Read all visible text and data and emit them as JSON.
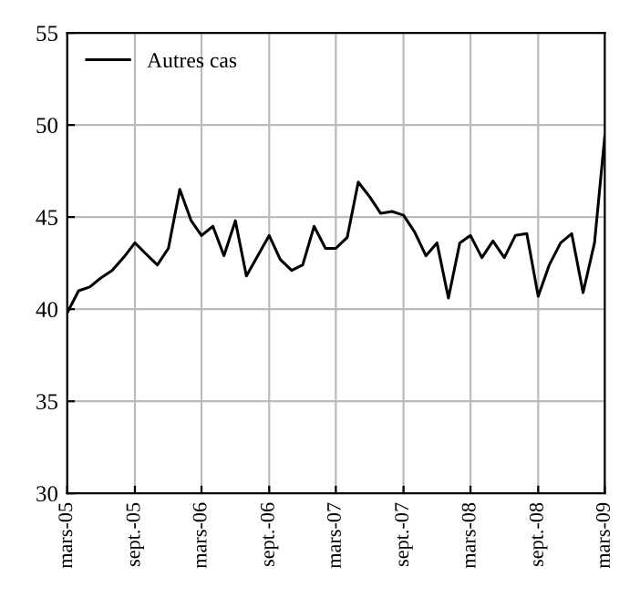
{
  "chart_data": {
    "type": "line",
    "x": [
      "2005-03",
      "2005-04",
      "2005-05",
      "2005-06",
      "2005-07",
      "2005-08",
      "2005-09",
      "2005-10",
      "2005-11",
      "2005-12",
      "2006-01",
      "2006-02",
      "2006-03",
      "2006-04",
      "2006-05",
      "2006-06",
      "2006-07",
      "2006-08",
      "2006-09",
      "2006-10",
      "2006-11",
      "2006-12",
      "2007-01",
      "2007-02",
      "2007-03",
      "2007-04",
      "2007-05",
      "2007-06",
      "2007-07",
      "2007-08",
      "2007-09",
      "2007-10",
      "2007-11",
      "2007-12",
      "2008-01",
      "2008-02",
      "2008-03",
      "2008-04",
      "2008-05",
      "2008-06",
      "2008-07",
      "2008-08",
      "2008-09",
      "2008-10",
      "2008-11",
      "2008-12",
      "2009-01",
      "2009-02",
      "2009-03"
    ],
    "series": [
      {
        "name": "Autres cas",
        "color": "#000000",
        "values": [
          39.8,
          41.0,
          41.2,
          41.7,
          42.1,
          42.8,
          43.6,
          43.0,
          42.4,
          43.3,
          46.5,
          44.8,
          44.0,
          44.5,
          42.9,
          44.8,
          41.8,
          42.9,
          44.0,
          42.7,
          42.1,
          42.4,
          44.5,
          43.3,
          43.3,
          43.9,
          46.9,
          46.1,
          45.2,
          45.3,
          45.1,
          44.2,
          42.9,
          43.6,
          40.6,
          43.6,
          44.0,
          42.8,
          43.7,
          42.8,
          44.0,
          44.1,
          40.7,
          42.4,
          43.6,
          44.1,
          40.9,
          43.6,
          49.4
        ]
      }
    ],
    "xlim": [
      "2005-03",
      "2009-03"
    ],
    "xticks": [
      {
        "value": "2005-03",
        "label": "mars-05"
      },
      {
        "value": "2005-09",
        "label": "sept.-05"
      },
      {
        "value": "2006-03",
        "label": "mars-06"
      },
      {
        "value": "2006-09",
        "label": "sept.-06"
      },
      {
        "value": "2007-03",
        "label": "mars-07"
      },
      {
        "value": "2007-09",
        "label": "sept.-07"
      },
      {
        "value": "2008-03",
        "label": "mars-08"
      },
      {
        "value": "2008-09",
        "label": "sept.-08"
      },
      {
        "value": "2009-03",
        "label": "mars-09"
      }
    ],
    "ylim": [
      30,
      55
    ],
    "yticks": [
      30,
      35,
      40,
      45,
      50,
      55
    ],
    "grid": true,
    "legend": "top left",
    "marker": "none",
    "line_style": "solid"
  }
}
